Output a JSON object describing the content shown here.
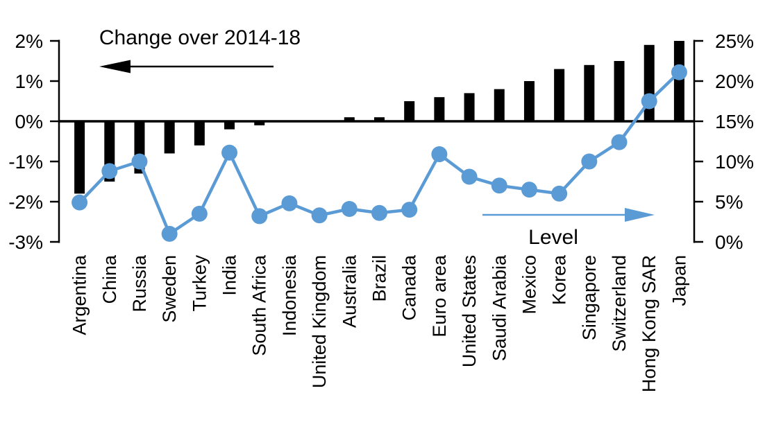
{
  "chart_data": {
    "type": "combo-bar-line",
    "title": "",
    "categories": [
      "Argentina",
      "China",
      "Russia",
      "Sweden",
      "Turkey",
      "India",
      "South Africa",
      "Indonesia",
      "United Kingdom",
      "Australia",
      "Brazil",
      "Canada",
      "Euro area",
      "United States",
      "Saudi Arabia",
      "Mexico",
      "Korea",
      "Singapore",
      "Switzerland",
      "Hong Kong SAR",
      "Japan"
    ],
    "series": [
      {
        "name": "Change over 2014-18",
        "type": "bar",
        "axis": "left",
        "color": "#000000",
        "values": [
          -1.8,
          -1.5,
          -1.3,
          -0.8,
          -0.6,
          -0.2,
          -0.1,
          0,
          0,
          0.1,
          0.1,
          0.5,
          0.6,
          0.7,
          0.8,
          1.0,
          1.3,
          1.4,
          1.5,
          1.9,
          2.0
        ]
      },
      {
        "name": "Level",
        "type": "line",
        "axis": "right",
        "color": "#5B9BD5",
        "values": [
          4.9,
          8.8,
          10.0,
          1.0,
          3.5,
          11.1,
          3.2,
          4.8,
          3.3,
          4.1,
          3.6,
          4.0,
          10.9,
          8.1,
          7.0,
          6.5,
          6.0,
          10.0,
          12.4,
          17.5,
          21.1
        ]
      }
    ],
    "left_axis": {
      "ticks": [
        "2%",
        "1%",
        "0%",
        "-1%",
        "-2%",
        "-3%"
      ],
      "min": -3,
      "max": 2,
      "unit": "%"
    },
    "right_axis": {
      "ticks": [
        "25%",
        "20%",
        "15%",
        "10%",
        "5%",
        "0%"
      ],
      "min": 0,
      "max": 25,
      "unit": "%"
    },
    "annotations": {
      "bar_series_label": "Change over 2014-18",
      "line_series_label": "Level"
    },
    "grid": false,
    "legend_position": "in-plot annotations with arrows"
  },
  "colors": {
    "bar": "#000000",
    "line": "#5B9BD5",
    "text": "#000000",
    "background": "#FFFFFF"
  }
}
